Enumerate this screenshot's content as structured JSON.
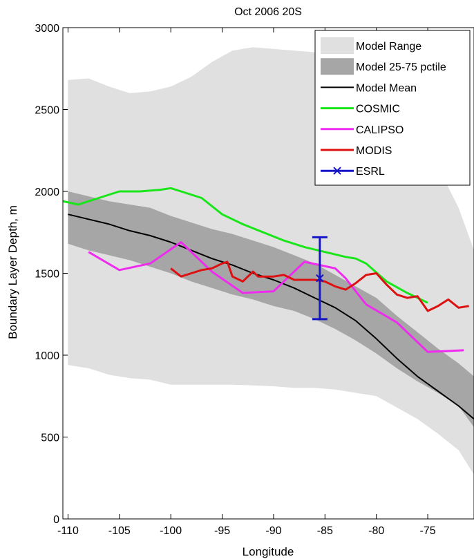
{
  "chart_data": {
    "type": "line",
    "title": "Oct 2006 20S",
    "xlabel": "Longitude",
    "ylabel": "Boundary Layer Depth, m",
    "xlim": [
      -110.5,
      -70.5
    ],
    "ylim": [
      0,
      3000
    ],
    "xticks": [
      -110,
      -105,
      -100,
      -95,
      -90,
      -85,
      -80,
      -75
    ],
    "yticks": [
      0,
      500,
      1000,
      1500,
      2000,
      2500,
      3000
    ],
    "grid": false,
    "legend_position": "top-right",
    "colors": {
      "model_range": "#e0e0e0",
      "model_iqr": "#a6a6a6",
      "model_mean": "#000000",
      "cosmic": "#19e619",
      "calipso": "#ee2bee",
      "modis": "#dd1111",
      "esrl": "#1515c8"
    },
    "legend": [
      {
        "label": "Model Range",
        "key": "model_range"
      },
      {
        "label": "Model 25-75 pctile",
        "key": "model_iqr"
      },
      {
        "label": "Model Mean",
        "key": "model_mean"
      },
      {
        "label": "COSMIC",
        "key": "cosmic"
      },
      {
        "label": "CALIPSO",
        "key": "calipso"
      },
      {
        "label": "MODIS",
        "key": "modis"
      },
      {
        "label": "ESRL",
        "key": "esrl"
      }
    ],
    "model_range": {
      "x": [
        -110,
        -108,
        -106,
        -104,
        -102,
        -100,
        -98,
        -96,
        -94,
        -92,
        -90,
        -88,
        -86,
        -84,
        -82,
        -80,
        -78,
        -76,
        -74,
        -72,
        -70.5
      ],
      "upper": [
        2680,
        2690,
        2640,
        2600,
        2610,
        2640,
        2700,
        2790,
        2860,
        2880,
        2870,
        2860,
        2850,
        2820,
        2760,
        2620,
        2480,
        2330,
        2150,
        1900,
        1640
      ],
      "lower": [
        940,
        920,
        880,
        860,
        850,
        820,
        820,
        820,
        820,
        815,
        810,
        800,
        800,
        790,
        770,
        750,
        680,
        610,
        520,
        420,
        270
      ]
    },
    "model_iqr": {
      "x": [
        -110,
        -108,
        -106,
        -104,
        -102,
        -100,
        -98,
        -96,
        -94,
        -92,
        -90,
        -88,
        -86,
        -84,
        -82,
        -80,
        -78,
        -76,
        -74,
        -72,
        -70.5
      ],
      "upper": [
        2000,
        1970,
        1940,
        1920,
        1900,
        1850,
        1810,
        1770,
        1740,
        1700,
        1660,
        1610,
        1560,
        1490,
        1420,
        1350,
        1240,
        1140,
        1040,
        950,
        870
      ],
      "lower": [
        1680,
        1640,
        1610,
        1580,
        1540,
        1500,
        1450,
        1410,
        1370,
        1340,
        1300,
        1270,
        1220,
        1160,
        1090,
        1010,
        920,
        840,
        770,
        690,
        560
      ]
    },
    "series": [
      {
        "name": "Model Mean",
        "key": "model_mean",
        "x": [
          -110,
          -108,
          -106,
          -104,
          -102,
          -100,
          -98,
          -96,
          -94,
          -92,
          -90,
          -88,
          -86,
          -84,
          -82,
          -80,
          -78,
          -76,
          -74,
          -72,
          -70.5
        ],
        "values": [
          1860,
          1830,
          1800,
          1760,
          1730,
          1690,
          1640,
          1590,
          1550,
          1500,
          1460,
          1410,
          1350,
          1290,
          1210,
          1100,
          980,
          870,
          780,
          690,
          610
        ]
      },
      {
        "name": "COSMIC",
        "key": "cosmic",
        "x": [
          -110.5,
          -109,
          -107,
          -105,
          -103,
          -101,
          -100,
          -99,
          -97,
          -95,
          -93,
          -91,
          -89,
          -87,
          -85,
          -83,
          -82,
          -81,
          -79,
          -77,
          -75
        ],
        "values": [
          1940,
          1920,
          1960,
          2000,
          2000,
          2010,
          2020,
          2000,
          1960,
          1860,
          1800,
          1750,
          1700,
          1660,
          1630,
          1600,
          1590,
          1560,
          1450,
          1380,
          1320
        ]
      },
      {
        "name": "CALIPSO",
        "key": "calipso",
        "x": [
          -108,
          -105,
          -102,
          -99,
          -96,
          -93,
          -90,
          -87,
          -84,
          -83,
          -81,
          -78,
          -75,
          -71.5
        ],
        "values": [
          1630,
          1520,
          1560,
          1690,
          1510,
          1380,
          1390,
          1570,
          1530,
          1470,
          1310,
          1200,
          1020,
          1030
        ]
      },
      {
        "name": "MODIS",
        "key": "modis",
        "x": [
          -100,
          -99,
          -98,
          -97,
          -96,
          -95,
          -94.5,
          -94,
          -93,
          -92,
          -91.5,
          -91,
          -90,
          -89,
          -88,
          -87,
          -86,
          -85,
          -84,
          -83,
          -82,
          -81,
          -80,
          -79,
          -78,
          -77,
          -76,
          -75,
          -74,
          -73,
          -72,
          -71
        ],
        "values": [
          1530,
          1480,
          1500,
          1520,
          1530,
          1560,
          1570,
          1480,
          1450,
          1510,
          1480,
          1480,
          1480,
          1490,
          1460,
          1460,
          1460,
          1450,
          1420,
          1400,
          1440,
          1490,
          1500,
          1430,
          1370,
          1350,
          1360,
          1270,
          1300,
          1340,
          1290,
          1300
        ]
      },
      {
        "name": "ESRL",
        "key": "esrl",
        "x": [
          -85.5
        ],
        "values": [
          1470
        ],
        "error_low": [
          1220
        ],
        "error_high": [
          1720
        ]
      }
    ]
  }
}
